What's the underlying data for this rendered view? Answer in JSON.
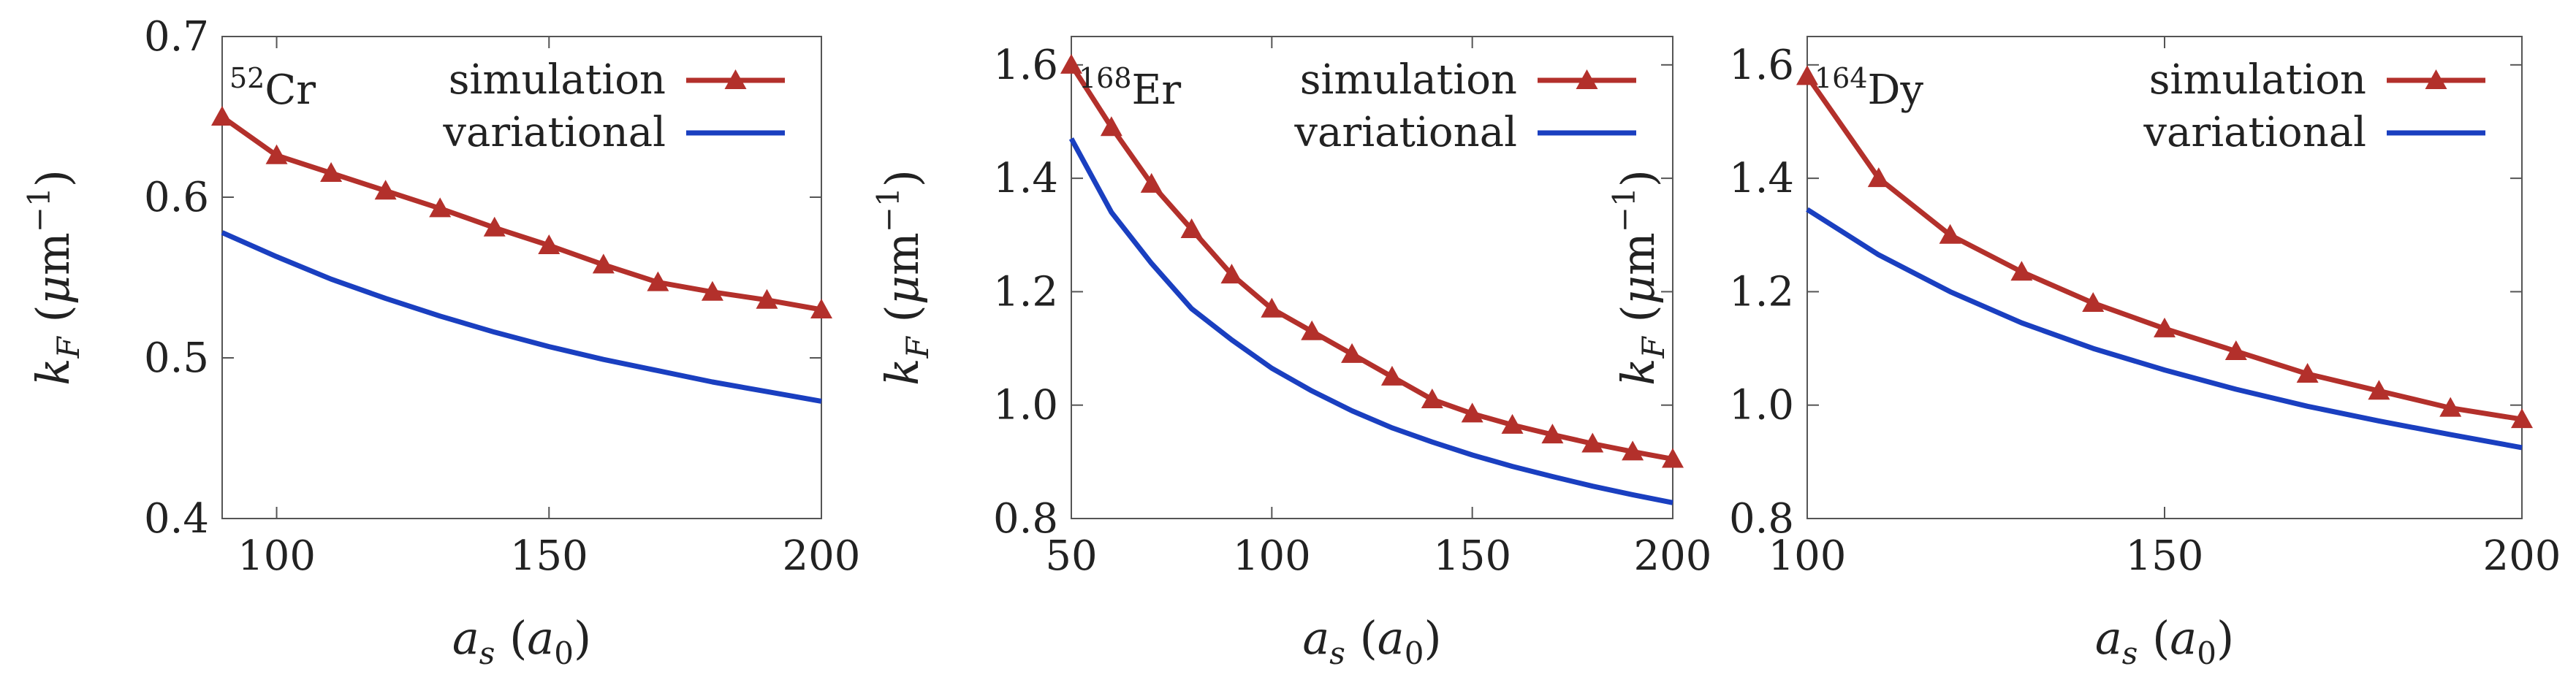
{
  "chart_data": [
    {
      "type": "line",
      "isotope": {
        "mass": "52",
        "element": "Cr"
      },
      "xlabel": {
        "var": "a",
        "sub": "s",
        "unit_var": "a",
        "unit_sub": "0"
      },
      "ylabel": {
        "var": "k",
        "sub": "F",
        "unit_mu": "μ",
        "unit": "m",
        "unit_exp": "−1"
      },
      "xlim": [
        90,
        200
      ],
      "ylim": [
        0.4,
        0.7
      ],
      "xticks": [
        100,
        150,
        200
      ],
      "yticks": [
        0.4,
        0.5,
        0.6,
        0.7
      ],
      "ytick_labels": [
        "0.4",
        "0.5",
        "0.6",
        "0.7"
      ],
      "grid": false,
      "legend_position": "top-right",
      "series": [
        {
          "name": "simulation",
          "color": "#b3302b",
          "marker": "triangle",
          "x": [
            90,
            100,
            110,
            120,
            130,
            140,
            150,
            160,
            170,
            180,
            190,
            200
          ],
          "y": [
            0.65,
            0.626,
            0.615,
            0.604,
            0.593,
            0.581,
            0.57,
            0.558,
            0.547,
            0.541,
            0.536,
            0.53
          ]
        },
        {
          "name": "variational",
          "color": "#1a3fc0",
          "marker": "none",
          "x": [
            90,
            100,
            110,
            120,
            130,
            140,
            150,
            160,
            170,
            180,
            190,
            200
          ],
          "y": [
            0.578,
            0.563,
            0.549,
            0.537,
            0.526,
            0.516,
            0.507,
            0.499,
            0.492,
            0.485,
            0.479,
            0.473
          ]
        }
      ]
    },
    {
      "type": "line",
      "isotope": {
        "mass": "168",
        "element": "Er"
      },
      "xlabel": {
        "var": "a",
        "sub": "s",
        "unit_var": "a",
        "unit_sub": "0"
      },
      "ylabel": {
        "var": "k",
        "sub": "F",
        "unit_mu": "μ",
        "unit": "m",
        "unit_exp": "−1"
      },
      "xlim": [
        50,
        200
      ],
      "ylim": [
        0.8,
        1.65
      ],
      "xticks": [
        50,
        100,
        150,
        200
      ],
      "yticks": [
        0.8,
        1.0,
        1.2,
        1.4,
        1.6
      ],
      "ytick_labels": [
        "0.8",
        "1.0",
        "1.2",
        "1.4",
        "1.6"
      ],
      "grid": false,
      "legend_position": "top-right",
      "series": [
        {
          "name": "simulation",
          "color": "#b3302b",
          "marker": "triangle",
          "x": [
            50,
            60,
            70,
            80,
            90,
            100,
            110,
            120,
            130,
            140,
            150,
            160,
            170,
            180,
            190,
            200
          ],
          "y": [
            1.6,
            1.49,
            1.39,
            1.31,
            1.23,
            1.17,
            1.13,
            1.09,
            1.05,
            1.01,
            0.985,
            0.965,
            0.948,
            0.932,
            0.918,
            0.905
          ]
        },
        {
          "name": "variational",
          "color": "#1a3fc0",
          "marker": "none",
          "x": [
            50,
            60,
            70,
            80,
            90,
            100,
            110,
            120,
            130,
            140,
            150,
            160,
            170,
            180,
            190,
            200
          ],
          "y": [
            1.47,
            1.34,
            1.25,
            1.17,
            1.115,
            1.065,
            1.025,
            0.99,
            0.96,
            0.935,
            0.912,
            0.892,
            0.874,
            0.857,
            0.842,
            0.828
          ]
        }
      ]
    },
    {
      "type": "line",
      "isotope": {
        "mass": "164",
        "element": "Dy"
      },
      "xlabel": {
        "var": "a",
        "sub": "s",
        "unit_var": "a",
        "unit_sub": "0"
      },
      "ylabel": {
        "var": "k",
        "sub": "F",
        "unit_mu": "μ",
        "unit": "m",
        "unit_exp": "−1"
      },
      "xlim": [
        100,
        200
      ],
      "ylim": [
        0.8,
        1.65
      ],
      "xticks": [
        100,
        150,
        200
      ],
      "yticks": [
        0.8,
        1.0,
        1.2,
        1.4,
        1.6
      ],
      "ytick_labels": [
        "0.8",
        "1.0",
        "1.2",
        "1.4",
        "1.6"
      ],
      "grid": false,
      "legend_position": "top-right",
      "series": [
        {
          "name": "simulation",
          "color": "#b3302b",
          "marker": "triangle",
          "x": [
            100,
            110,
            120,
            130,
            140,
            150,
            160,
            170,
            180,
            190,
            200
          ],
          "y": [
            1.58,
            1.4,
            1.3,
            1.235,
            1.18,
            1.135,
            1.095,
            1.055,
            1.025,
            0.995,
            0.975
          ]
        },
        {
          "name": "variational",
          "color": "#1a3fc0",
          "marker": "none",
          "x": [
            100,
            110,
            120,
            130,
            140,
            150,
            160,
            170,
            180,
            190,
            200
          ],
          "y": [
            1.345,
            1.265,
            1.2,
            1.145,
            1.1,
            1.062,
            1.028,
            0.998,
            0.972,
            0.948,
            0.925
          ]
        }
      ]
    }
  ]
}
